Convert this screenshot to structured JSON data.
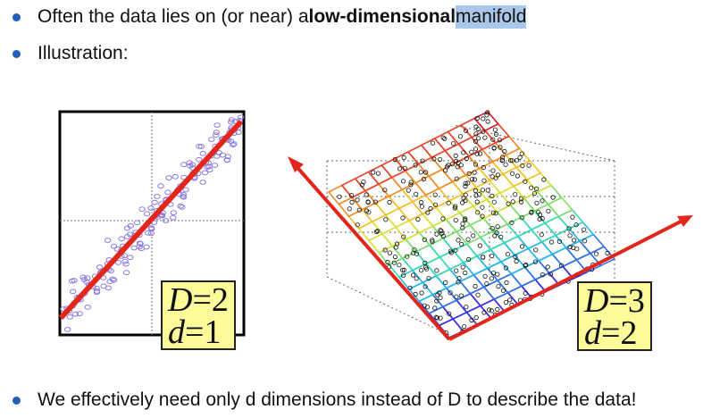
{
  "bullets": [
    {
      "prefix": "Often the data lies on (or near) a ",
      "bold": "low-dimensional",
      "space": " ",
      "highlight": "manifold"
    },
    {
      "text": "Illustration:"
    },
    {
      "text": "We effectively need only d dimensions instead of D to describe the data!"
    }
  ],
  "left_box": {
    "D_label": "D",
    "D_value": "2",
    "d_label": "d",
    "d_value": "1",
    "eq": "="
  },
  "right_box": {
    "D_label": "D",
    "D_value": "3",
    "d_label": "d",
    "d_value": "2",
    "eq": "="
  },
  "colors": {
    "bullet": "#1f5fb8",
    "highlight": "#a9c7e8",
    "arrow": "#e3261c",
    "scatter": "#8a7ae0",
    "box_fill": "#fdfa9a"
  }
}
